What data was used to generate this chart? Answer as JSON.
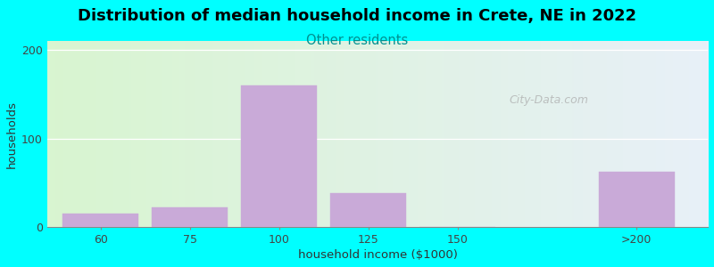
{
  "title": "Distribution of median household income in Crete, NE in 2022",
  "subtitle": "Other residents",
  "xlabel": "household income ($1000)",
  "ylabel": "households",
  "bar_labels": [
    "60",
    "75",
    "100",
    "125",
    "150",
    ">200"
  ],
  "bar_values": [
    15,
    22,
    160,
    38,
    0,
    62
  ],
  "bar_color": "#c9aad8",
  "bg_color": "#00ffff",
  "ylim": [
    0,
    210
  ],
  "yticks": [
    0,
    100,
    200
  ],
  "title_fontsize": 13,
  "subtitle_fontsize": 10.5,
  "subtitle_color": "#009090",
  "axis_label_fontsize": 9.5,
  "watermark": "City-Data.com",
  "bar_positions": [
    1,
    2,
    3,
    4,
    5,
    7
  ],
  "bar_width": 0.85,
  "xlim": [
    0.4,
    7.8
  ]
}
